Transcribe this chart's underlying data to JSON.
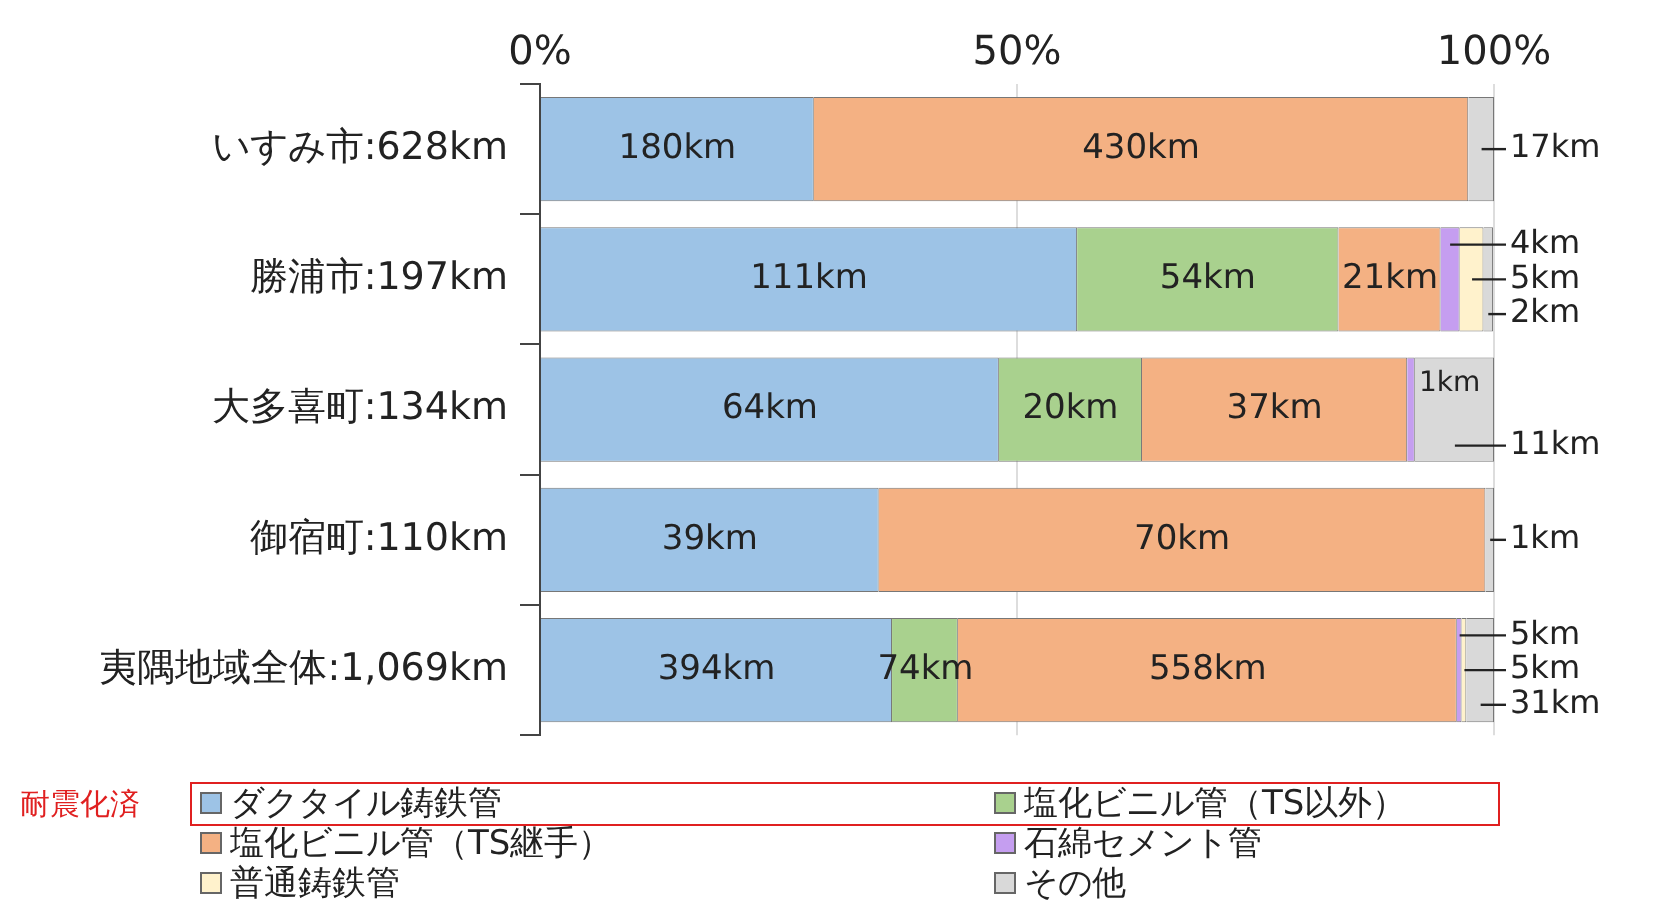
{
  "chart_data": {
    "type": "bar",
    "orientation": "horizontal",
    "stacked": true,
    "categories": [
      "いすみ市:628km",
      "勝浦市:197km",
      "大多喜町:134km",
      "御宿町:110km",
      "夷隅地域全体:1,069km"
    ],
    "series": [
      {
        "name": "ダクタイル鋳鉄管",
        "color": "#9dc3e6",
        "values": [
          28.7,
          56.3,
          48.1,
          35.5,
          36.9
        ]
      },
      {
        "name": "塩化ビニル管（TS以外）",
        "color": "#a9d18e",
        "values": [
          null,
          27.4,
          15.0,
          null,
          6.9
        ]
      },
      {
        "name": "塩化ビニル管（TS継手）",
        "color": "#f4b183",
        "values": [
          68.6,
          10.7,
          27.8,
          63.6,
          52.3
        ]
      },
      {
        "name": "石綿セメント管",
        "color": "#c59ef0",
        "values": [
          null,
          2.0,
          0.8,
          null,
          0.5
        ]
      },
      {
        "name": "普通鋳鉄管",
        "color": "#fff2cc",
        "values": [
          null,
          2.5,
          null,
          null,
          0.5
        ]
      },
      {
        "name": "その他",
        "color": "#d9d9d9",
        "values": [
          2.7,
          1.0,
          8.3,
          0.9,
          2.9
        ]
      }
    ],
    "xlim": [
      0,
      100
    ],
    "xticks": [
      {
        "value": 0,
        "label": "0%"
      },
      {
        "value": 50,
        "label": "50%"
      },
      {
        "value": 100,
        "label": "100%"
      }
    ],
    "grid": "x",
    "legend": "bottom",
    "annotations": [
      {
        "text": "180km",
        "x": 14.4,
        "y": "いすみ市:628km"
      },
      {
        "text": "430km",
        "x": 63.0,
        "y": "いすみ市:628km"
      },
      {
        "text": "17km",
        "x": 98.7,
        "y": "いすみ市:628km"
      },
      {
        "text": "111km",
        "x": 28.2,
        "y": "勝浦市:197km"
      },
      {
        "text": "54km",
        "x": 70.0,
        "y": "勝浦市:197km"
      },
      {
        "text": "21km",
        "x": 89.1,
        "y": "勝浦市:197km"
      },
      {
        "text": "4km",
        "x": 95.4,
        "y": "勝浦市:197km"
      },
      {
        "text": "5km",
        "x": 97.7,
        "y": "勝浦市:197km"
      },
      {
        "text": "2km",
        "x": 99.4,
        "y": "勝浦市:197km"
      },
      {
        "text": "64km",
        "x": 24.1,
        "y": "大多喜町:134km"
      },
      {
        "text": "20km",
        "x": 55.6,
        "y": "大多喜町:134km"
      },
      {
        "text": "37km",
        "x": 77.0,
        "y": "大多喜町:134km"
      },
      {
        "text": "1km",
        "x": 91.3,
        "y": "大多喜町:134km"
      },
      {
        "text": "11km",
        "x": 95.9,
        "y": "大多喜町:134km"
      },
      {
        "text": "39km",
        "x": 17.8,
        "y": "御宿町:110km"
      },
      {
        "text": "70km",
        "x": 67.3,
        "y": "御宿町:110km"
      },
      {
        "text": "1km",
        "x": 99.6,
        "y": "御宿町:110km"
      },
      {
        "text": "394km",
        "x": 18.5,
        "y": "夷隅地域全体:1,069km"
      },
      {
        "text": "74km",
        "x": 40.4,
        "y": "夷隅地域全体:1,069km"
      },
      {
        "text": "558km",
        "x": 70.0,
        "y": "夷隅地域全体:1,069km"
      },
      {
        "text": "5km",
        "x": 96.4,
        "y": "夷隅地域全体:1,069km"
      },
      {
        "text": "5km",
        "x": 96.9,
        "y": "夷隅地域全体:1,069km"
      },
      {
        "text": "31km",
        "x": 98.6,
        "y": "夷隅地域全体:1,069km"
      },
      "耐震化済"
    ]
  }
}
